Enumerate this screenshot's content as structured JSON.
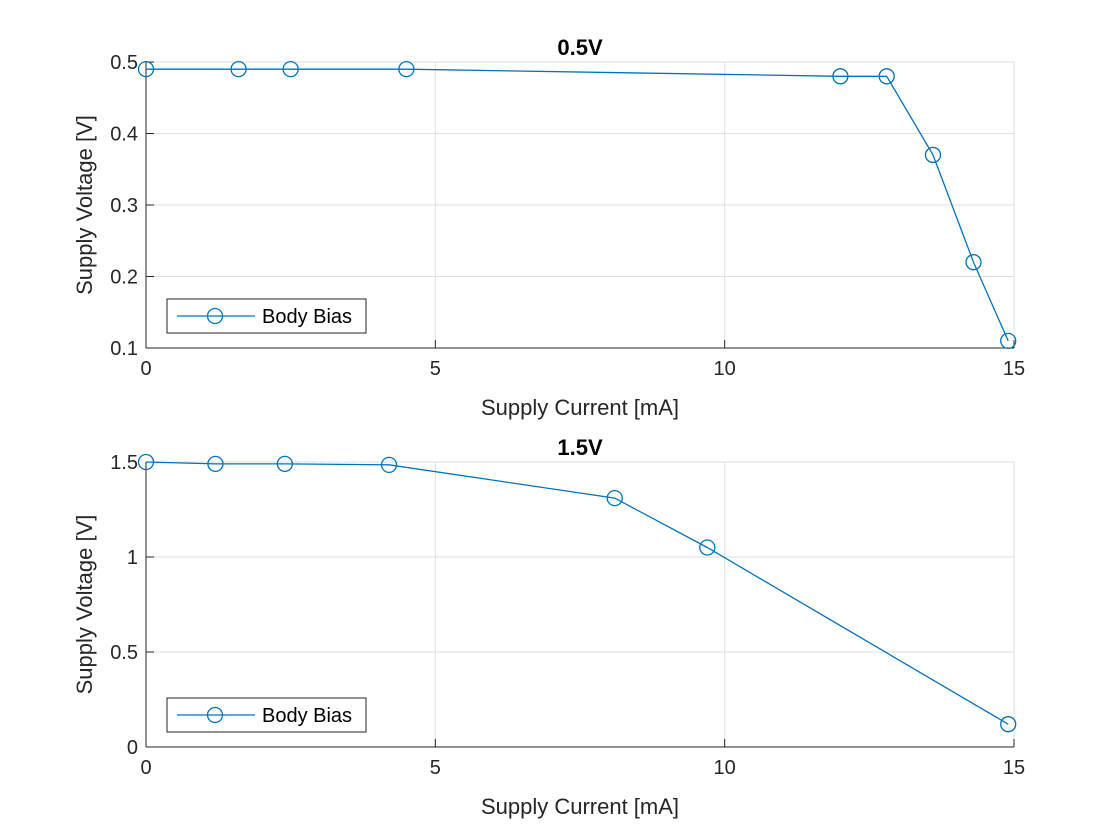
{
  "chart_data": [
    {
      "type": "line",
      "title": "0.5V",
      "xlabel": "Supply Current [mA]",
      "ylabel": "Supply Voltage [V]",
      "xlim": [
        0,
        15
      ],
      "ylim": [
        0.1,
        0.5
      ],
      "xticks": [
        0,
        5,
        10,
        15
      ],
      "yticks": [
        0.1,
        0.2,
        0.3,
        0.4,
        0.5
      ],
      "xtick_labels": [
        "0",
        "5",
        "10",
        "15"
      ],
      "ytick_labels": [
        "0.1",
        "0.2",
        "0.3",
        "0.4",
        "0.5"
      ],
      "grid": true,
      "legend_location": "bottom-left",
      "series": [
        {
          "name": "Body Bias",
          "marker": "circle",
          "color": "#0072BD",
          "x": [
            0,
            1.6,
            2.5,
            4.5,
            12.0,
            12.8,
            13.6,
            14.3,
            14.9
          ],
          "y": [
            0.49,
            0.49,
            0.49,
            0.49,
            0.48,
            0.48,
            0.37,
            0.22,
            0.11
          ]
        }
      ]
    },
    {
      "type": "line",
      "title": "1.5V",
      "xlabel": "Supply Current [mA]",
      "ylabel": "Supply Voltage [V]",
      "xlim": [
        0,
        15
      ],
      "ylim": [
        0,
        1.5
      ],
      "xticks": [
        0,
        5,
        10,
        15
      ],
      "yticks": [
        0,
        0.5,
        1,
        1.5
      ],
      "xtick_labels": [
        "0",
        "5",
        "10",
        "15"
      ],
      "ytick_labels": [
        "0",
        "0.5",
        "1",
        "1.5"
      ],
      "grid": true,
      "legend_location": "bottom-left",
      "series": [
        {
          "name": "Body Bias",
          "marker": "circle",
          "color": "#0072BD",
          "x": [
            0,
            1.2,
            2.4,
            4.2,
            8.1,
            9.7,
            14.9
          ],
          "y": [
            1.5,
            1.49,
            1.49,
            1.485,
            1.31,
            1.05,
            0.12
          ]
        }
      ]
    }
  ]
}
